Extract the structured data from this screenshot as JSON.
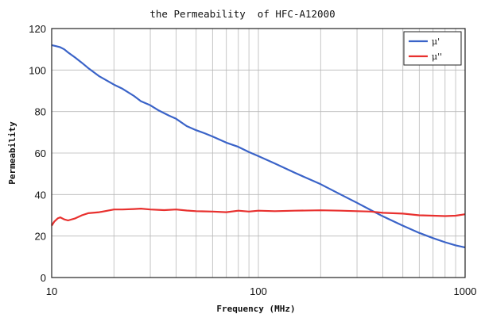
{
  "chart_data": {
    "type": "line",
    "title": "the Permeability  of HFC-A12000",
    "xlabel": "Frequency (MHz)",
    "ylabel": "Permeability",
    "x_scale": "log",
    "xlim": [
      10,
      1000
    ],
    "ylim": [
      0,
      120
    ],
    "x_ticks": [
      10,
      100,
      1000
    ],
    "x_tick_labels": [
      "10",
      "100",
      "1000"
    ],
    "y_ticks": [
      0,
      20,
      40,
      60,
      80,
      100,
      120
    ],
    "y_tick_labels": [
      "0",
      "20",
      "40",
      "60",
      "80",
      "100",
      "120"
    ],
    "grid": true,
    "legend_position": "top-right",
    "series": [
      {
        "name": "μ'",
        "color": "#3a63c8",
        "x": [
          10,
          10.5,
          11,
          11.5,
          12,
          13,
          14,
          15,
          17,
          20,
          22,
          25,
          27,
          30,
          33,
          37,
          40,
          45,
          50,
          55,
          60,
          70,
          80,
          90,
          100,
          120,
          150,
          200,
          250,
          300,
          350,
          400,
          500,
          600,
          700,
          800,
          900,
          1000
        ],
        "y": [
          112,
          111.5,
          111,
          110,
          108.5,
          106,
          103.5,
          101,
          97,
          93,
          91,
          87.5,
          85,
          83,
          80.5,
          78,
          76.5,
          73,
          71,
          69.5,
          68,
          65,
          63,
          60.5,
          58.5,
          55,
          50.5,
          45,
          40,
          36,
          32.5,
          29.5,
          25,
          21.5,
          19,
          17,
          15.5,
          14.5
        ]
      },
      {
        "name": "μ''",
        "color": "#e8302e",
        "x": [
          10,
          10.3,
          10.7,
          11,
          11.5,
          12,
          13,
          14,
          15,
          17,
          20,
          22,
          25,
          27,
          30,
          35,
          40,
          45,
          50,
          60,
          70,
          80,
          90,
          100,
          120,
          150,
          200,
          250,
          300,
          350,
          400,
          500,
          600,
          700,
          800,
          900,
          1000
        ],
        "y": [
          25,
          27,
          28.5,
          29,
          28,
          27.5,
          28.5,
          30,
          31,
          31.5,
          32.8,
          32.8,
          33,
          33.2,
          32.8,
          32.5,
          32.8,
          32.3,
          32,
          31.8,
          31.5,
          32.2,
          31.8,
          32.2,
          32,
          32.2,
          32.4,
          32.2,
          32,
          31.8,
          31.2,
          30.8,
          30,
          29.8,
          29.6,
          29.8,
          30.5
        ]
      }
    ]
  }
}
